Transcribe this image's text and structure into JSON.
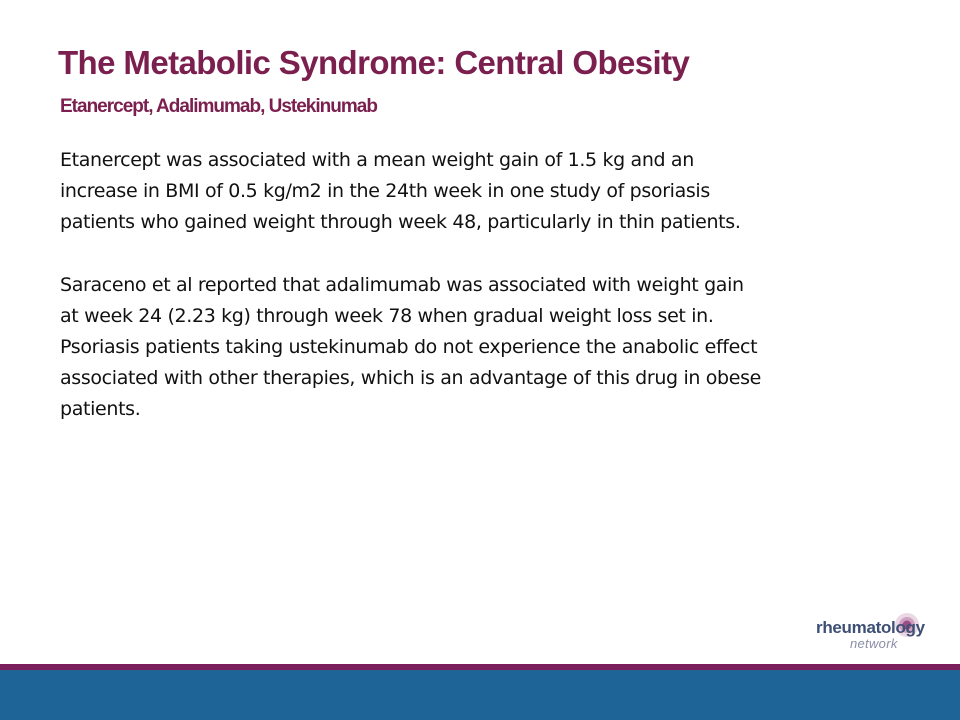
{
  "slide": {
    "title": "The Metabolic Syndrome:  Central Obesity",
    "subtitle": "Etanercept, Adalimumab, Ustekinumab",
    "paragraph1": [
      "Etanercept was associated with a mean weight gain of 1.5 kg and an",
      "increase in BMI of 0.5 kg/m2 in the 24th week in one study of psoriasis",
      "patients who gained weight through week 48, particularly in thin patients."
    ],
    "paragraph2": [
      "Saraceno et al reported that adalimumab was associated with weight gain",
      "at week 24 (2.23 kg) through week 78 when gradual weight loss set in.",
      "Psoriasis patients taking ustekinumab do not experience the anabolic effect",
      "associated with other therapies, which is an advantage of this drug in obese",
      "patients."
    ]
  },
  "logo": {
    "name": "rheumatology",
    "tagline": "network"
  },
  "colors": {
    "accent": "#7b1f4f",
    "footer_bar": "#1e6496",
    "footer_stripe": "#7b1f5c",
    "text": "#111111"
  }
}
